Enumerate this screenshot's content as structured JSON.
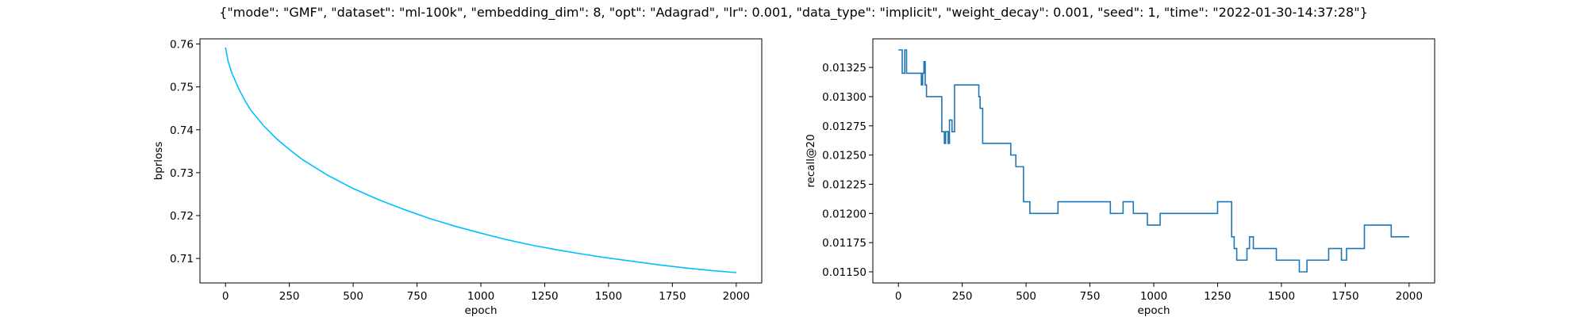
{
  "figure": {
    "title": "{\"mode\": \"GMF\", \"dataset\": \"ml-100k\", \"embedding_dim\": 8, \"opt\": \"Adagrad\", \"lr\": 0.001, \"data_type\": \"implicit\", \"weight_decay\": 0.001, \"seed\": 1, \"time\": \"2022-01-30-14:37:28\"}"
  },
  "chart_data": [
    {
      "type": "line",
      "xlabel": "epoch",
      "ylabel": "bprloss",
      "xlim": [
        -100,
        2100
      ],
      "ylim": [
        0.7043,
        0.7612
      ],
      "xticks": [
        0,
        250,
        500,
        750,
        1000,
        1250,
        1500,
        1750,
        2000
      ],
      "yticks": [
        0.71,
        0.72,
        0.73,
        0.74,
        0.75,
        0.76
      ],
      "ytick_labels": [
        "0.71",
        "0.72",
        "0.73",
        "0.74",
        "0.75",
        "0.76"
      ],
      "grid": false,
      "color": "#00bfff",
      "series": [
        {
          "x": [
            0,
            10,
            25,
            50,
            75,
            100,
            150,
            200,
            250,
            300,
            400,
            500,
            600,
            700,
            800,
            900,
            1000,
            1100,
            1200,
            1300,
            1400,
            1500,
            1600,
            1700,
            1800,
            1900,
            2000
          ],
          "values": [
            0.7592,
            0.756,
            0.7532,
            0.7498,
            0.7469,
            0.7445,
            0.7409,
            0.7379,
            0.7354,
            0.7331,
            0.7294,
            0.7263,
            0.7237,
            0.7214,
            0.7193,
            0.7175,
            0.7159,
            0.7144,
            0.7131,
            0.712,
            0.711,
            0.7101,
            0.7093,
            0.7085,
            0.7078,
            0.7072,
            0.7067
          ]
        }
      ]
    },
    {
      "type": "line",
      "step": true,
      "xlabel": "epoch",
      "ylabel": "recall@20",
      "xlim": [
        -100,
        2100
      ],
      "ylim": [
        0.011405,
        0.013495
      ],
      "xticks": [
        0,
        250,
        500,
        750,
        1000,
        1250,
        1500,
        1750,
        2000
      ],
      "yticks": [
        0.0115,
        0.01175,
        0.012,
        0.01225,
        0.0125,
        0.01275,
        0.013,
        0.01325
      ],
      "ytick_labels": [
        "0.01150",
        "0.01175",
        "0.01200",
        "0.01225",
        "0.01250",
        "0.01275",
        "0.01300",
        "0.01325"
      ],
      "grid": false,
      "color": "#1f77b4",
      "series": [
        {
          "x": [
            0,
            15,
            15,
            25,
            25,
            32,
            32,
            37,
            37,
            90,
            90,
            95,
            95,
            100,
            100,
            105,
            105,
            110,
            110,
            170,
            170,
            180,
            180,
            185,
            185,
            195,
            195,
            200,
            200,
            210,
            210,
            220,
            220,
            230,
            230,
            315,
            315,
            320,
            320,
            330,
            330,
            440,
            440,
            460,
            460,
            490,
            490,
            515,
            515,
            625,
            625,
            830,
            830,
            880,
            880,
            920,
            920,
            975,
            975,
            1025,
            1025,
            1250,
            1250,
            1305,
            1305,
            1315,
            1315,
            1325,
            1325,
            1365,
            1365,
            1375,
            1375,
            1390,
            1390,
            1480,
            1480,
            1570,
            1570,
            1600,
            1600,
            1685,
            1685,
            1735,
            1735,
            1755,
            1755,
            1825,
            1825,
            1930,
            1930,
            2000
          ],
          "values": [
            0.0134,
            0.0134,
            0.0132,
            0.0132,
            0.0134,
            0.0134,
            0.0132,
            0.0132,
            0.0132,
            0.0132,
            0.0131,
            0.0131,
            0.0132,
            0.0132,
            0.0133,
            0.0133,
            0.0131,
            0.0131,
            0.013,
            0.013,
            0.0127,
            0.0127,
            0.0126,
            0.0126,
            0.0127,
            0.0127,
            0.0126,
            0.0126,
            0.0128,
            0.0128,
            0.0127,
            0.0127,
            0.0131,
            0.0131,
            0.0131,
            0.0131,
            0.013,
            0.013,
            0.0129,
            0.0129,
            0.0126,
            0.0126,
            0.0125,
            0.0125,
            0.0124,
            0.0124,
            0.0121,
            0.0121,
            0.012,
            0.012,
            0.0121,
            0.0121,
            0.012,
            0.012,
            0.0121,
            0.0121,
            0.012,
            0.012,
            0.0119,
            0.0119,
            0.012,
            0.012,
            0.0121,
            0.0121,
            0.0118,
            0.0118,
            0.0117,
            0.0117,
            0.0116,
            0.0116,
            0.0117,
            0.0117,
            0.0118,
            0.0118,
            0.0117,
            0.0117,
            0.0116,
            0.0116,
            0.0115,
            0.0115,
            0.0116,
            0.0116,
            0.0117,
            0.0117,
            0.0116,
            0.0116,
            0.0117,
            0.0117,
            0.0119,
            0.0119,
            0.0118,
            0.0118
          ]
        }
      ]
    }
  ]
}
